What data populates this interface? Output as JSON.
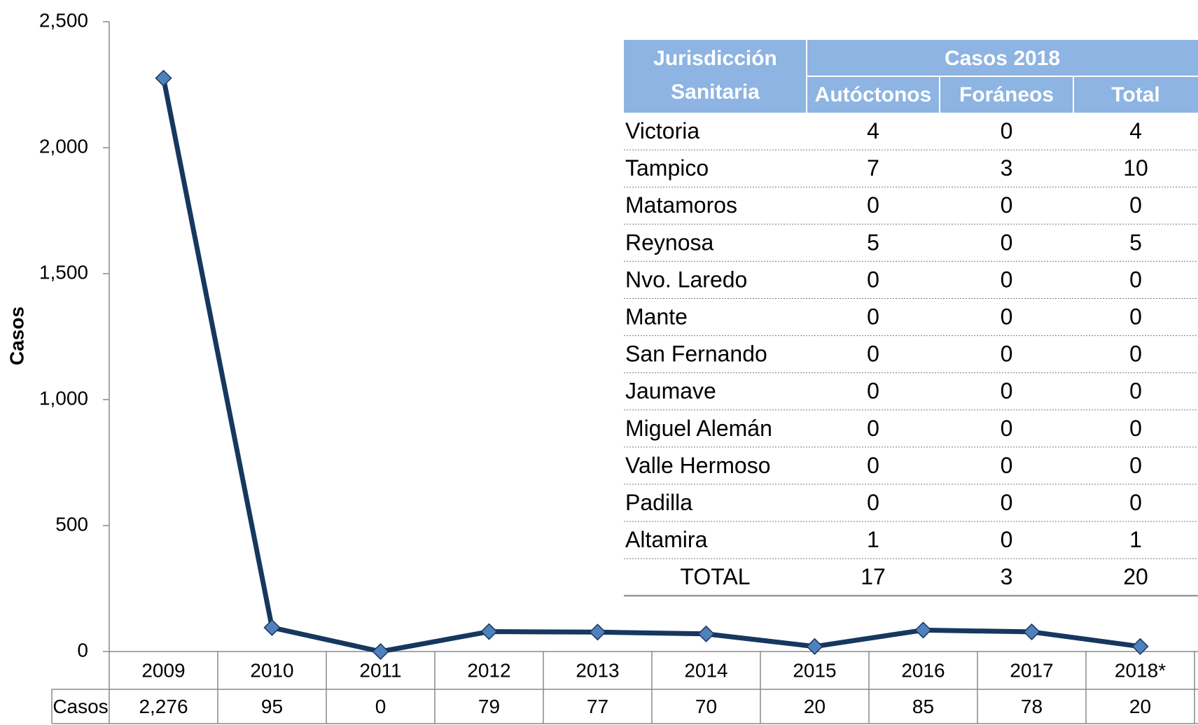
{
  "chart_data": {
    "type": "line",
    "y_label": "Casos",
    "categories": [
      "2009",
      "2010",
      "2011",
      "2012",
      "2013",
      "2014",
      "2015",
      "2016",
      "2017",
      "2018*"
    ],
    "series": [
      {
        "name": "Casos",
        "color": "#17375e",
        "marker_color": "#4f81bd",
        "values": [
          2276,
          95,
          0,
          79,
          77,
          70,
          20,
          85,
          78,
          20
        ],
        "value_labels": [
          "2,276",
          "95",
          "0",
          "79",
          "77",
          "70",
          "20",
          "85",
          "78",
          "20"
        ]
      }
    ],
    "ylim": [
      0,
      2500
    ],
    "yticks": [
      0,
      500,
      {
        "value": 1000,
        "label": "1,000"
      },
      {
        "value": 1500,
        "label": "1,500"
      },
      {
        "value": 2000,
        "label": "2,000"
      },
      {
        "value": 2500,
        "label": "2,500"
      }
    ],
    "grid": false
  },
  "table": {
    "header": {
      "jurisdiction": "Jurisdicción Sanitaria",
      "group": "Casos 2018",
      "columns": [
        "Autóctonos",
        "Foráneos",
        "Total"
      ]
    },
    "rows": [
      [
        "Victoria",
        "4",
        "0",
        "4"
      ],
      [
        "Tampico",
        "7",
        "3",
        "10"
      ],
      [
        "Matamoros",
        "0",
        "0",
        "0"
      ],
      [
        "Reynosa",
        "5",
        "0",
        "5"
      ],
      [
        "Nvo. Laredo",
        "0",
        "0",
        "0"
      ],
      [
        "Mante",
        "0",
        "0",
        "0"
      ],
      [
        "San Fernando",
        "0",
        "0",
        "0"
      ],
      [
        "Jaumave",
        "0",
        "0",
        "0"
      ],
      [
        "Miguel Alemán",
        "0",
        "0",
        "0"
      ],
      [
        "Valle Hermoso",
        "0",
        "0",
        "0"
      ],
      [
        "Padilla",
        "0",
        "0",
        "0"
      ],
      [
        "Altamira",
        "1",
        "0",
        "1"
      ]
    ],
    "total": [
      "TOTAL",
      "17",
      "3",
      "20"
    ]
  }
}
